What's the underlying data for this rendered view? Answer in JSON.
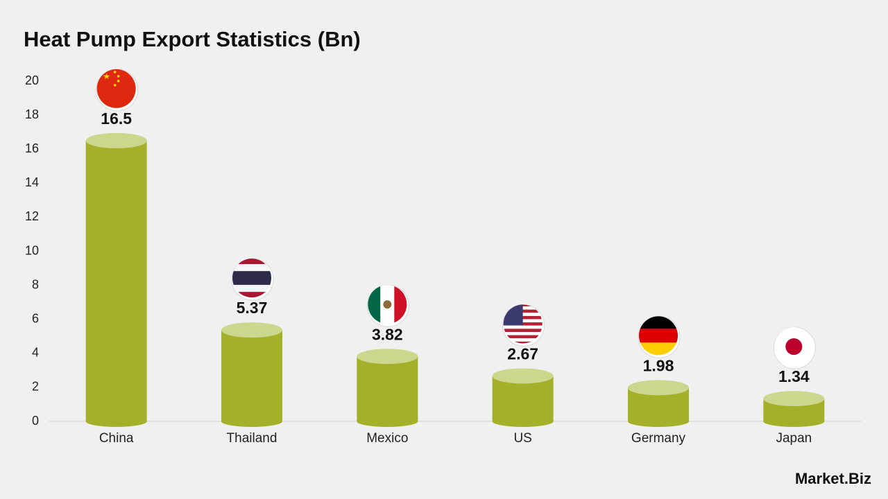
{
  "chart_data": {
    "type": "bar",
    "title": "Heat Pump Export Statistics (Bn)",
    "categories": [
      "China",
      "Thailand",
      "Mexico",
      "US",
      "Germany",
      "Japan"
    ],
    "values": [
      16.5,
      5.37,
      3.82,
      2.67,
      1.98,
      1.34
    ],
    "color": "#a3b02a",
    "top_color": "#cbd78d",
    "ylim": [
      0,
      20
    ],
    "yticks": [
      0,
      2,
      4,
      6,
      8,
      10,
      12,
      14,
      16,
      18,
      20
    ],
    "grid": false,
    "brand": "Market.Biz"
  }
}
